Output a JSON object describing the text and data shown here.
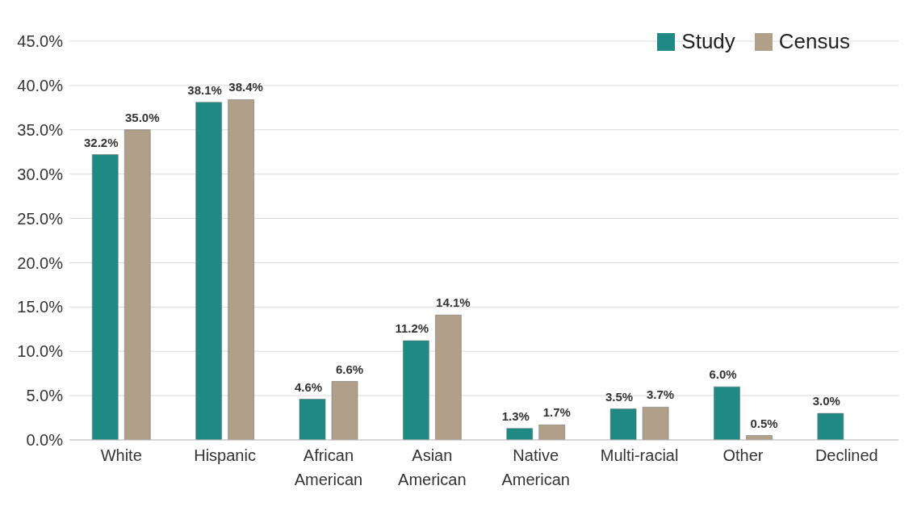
{
  "chart_data": {
    "type": "bar",
    "categories": [
      "White",
      "Hispanic",
      "African American",
      "Asian American",
      "Native American",
      "Multi-racial",
      "Other",
      "Declined"
    ],
    "series": [
      {
        "name": "Study",
        "color": "#1f8a84",
        "values": [
          32.2,
          38.1,
          4.6,
          11.2,
          1.3,
          3.5,
          6.0,
          3.0
        ],
        "value_labels": [
          "32.2%",
          "38.1%",
          "4.6%",
          "11.2%",
          "1.3%",
          "3.5%",
          "6.0%",
          "3.0%"
        ]
      },
      {
        "name": "Census",
        "color": "#b0a08a",
        "values": [
          35.0,
          38.4,
          6.6,
          14.1,
          1.7,
          3.7,
          0.5,
          null
        ],
        "value_labels": [
          "35.0%",
          "38.4%",
          "6.6%",
          "14.1%",
          "1.7%",
          "3.7%",
          "0.5%",
          null
        ]
      }
    ],
    "ylim": [
      0,
      45
    ],
    "yticks": [
      {
        "value": 0,
        "label": "0.0%"
      },
      {
        "value": 5,
        "label": "5.0%"
      },
      {
        "value": 10,
        "label": "10.0%"
      },
      {
        "value": 15,
        "label": "15.0%"
      },
      {
        "value": 20,
        "label": "20.0%"
      },
      {
        "value": 25,
        "label": "25.0%"
      },
      {
        "value": 30,
        "label": "30.0%"
      },
      {
        "value": 35,
        "label": "35.0%"
      },
      {
        "value": 40,
        "label": "40.0%"
      },
      {
        "value": 45,
        "label": "45.0%"
      }
    ],
    "grid": "y",
    "legend": "top right"
  }
}
